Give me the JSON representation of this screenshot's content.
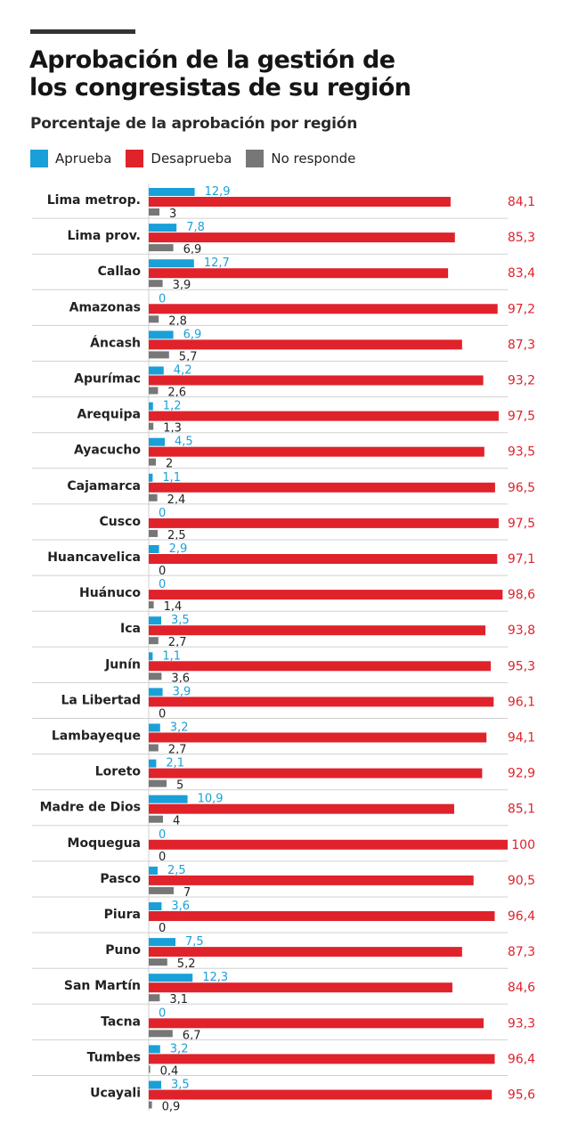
{
  "colors": {
    "aprueba": "#1aa0d8",
    "desaprueba": "#e0222b",
    "no_responde": "#777777",
    "text": "#222222"
  },
  "chart_data": {
    "type": "bar",
    "orientation": "horizontal",
    "title": "Aprobación de la gestión de los congresistas de su región",
    "title_lines": [
      "Aprobación de la gestión de",
      "los congresistas de su región"
    ],
    "subtitle": "Porcentaje de la aprobación por región",
    "xlim": [
      0,
      100
    ],
    "categories": [
      "Lima metrop.",
      "Lima prov.",
      "Callao",
      "Amazonas",
      "Áncash",
      "Apurímac",
      "Arequipa",
      "Ayacucho",
      "Cajamarca",
      "Cusco",
      "Huancavelica",
      "Huánuco",
      "Ica",
      "Junín",
      "La Libertad",
      "Lambayeque",
      "Loreto",
      "Madre de Dios",
      "Moquegua",
      "Pasco",
      "Piura",
      "Puno",
      "San Martín",
      "Tacna",
      "Tumbes",
      "Ucayali"
    ],
    "series": [
      {
        "name": "Aprueba",
        "values": [
          12.9,
          7.8,
          12.7,
          0,
          6.9,
          4.2,
          1.2,
          4.5,
          1.1,
          0,
          2.9,
          0,
          3.5,
          1.1,
          3.9,
          3.2,
          2.1,
          10.9,
          0,
          2.5,
          3.6,
          7.5,
          12.3,
          0,
          3.2,
          3.5
        ],
        "labels": [
          "12,9",
          "7,8",
          "12,7",
          "0",
          "6,9",
          "4,2",
          "1,2",
          "4,5",
          "1,1",
          "0",
          "2,9",
          "0",
          "3,5",
          "1,1",
          "3,9",
          "3,2",
          "2,1",
          "10,9",
          "0",
          "2,5",
          "3,6",
          "7,5",
          "12,3",
          "0",
          "3,2",
          "3,5"
        ]
      },
      {
        "name": "Desaprueba",
        "values": [
          84.1,
          85.3,
          83.4,
          97.2,
          87.3,
          93.2,
          97.5,
          93.5,
          96.5,
          97.5,
          97.1,
          98.6,
          93.8,
          95.3,
          96.1,
          94.1,
          92.9,
          85.1,
          100,
          90.5,
          96.4,
          87.3,
          84.6,
          93.3,
          96.4,
          95.6
        ],
        "labels": [
          "84,1",
          "85,3",
          "83,4",
          "97,2",
          "87,3",
          "93,2",
          "97,5",
          "93,5",
          "96,5",
          "97,5",
          "97,1",
          "98,6",
          "93,8",
          "95,3",
          "96,1",
          "94,1",
          "92,9",
          "85,1",
          "100",
          "90,5",
          "96,4",
          "87,3",
          "84,6",
          "93,3",
          "96,4",
          "95,6"
        ]
      },
      {
        "name": "No responde",
        "values": [
          3,
          6.9,
          3.9,
          2.8,
          5.7,
          2.6,
          1.3,
          2,
          2.4,
          2.5,
          0,
          1.4,
          2.7,
          3.6,
          0,
          2.7,
          5,
          4,
          0,
          7,
          0,
          5.2,
          3.1,
          6.7,
          0.4,
          0.9
        ],
        "labels": [
          "3",
          "6,9",
          "3,9",
          "2,8",
          "5,7",
          "2,6",
          "1,3",
          "2",
          "2,4",
          "2,5",
          "0",
          "1,4",
          "2,7",
          "3,6",
          "0",
          "2,7",
          "5",
          "4",
          "0",
          "7",
          "0",
          "5,2",
          "3,1",
          "6,7",
          "0,4",
          "0,9"
        ]
      }
    ]
  }
}
